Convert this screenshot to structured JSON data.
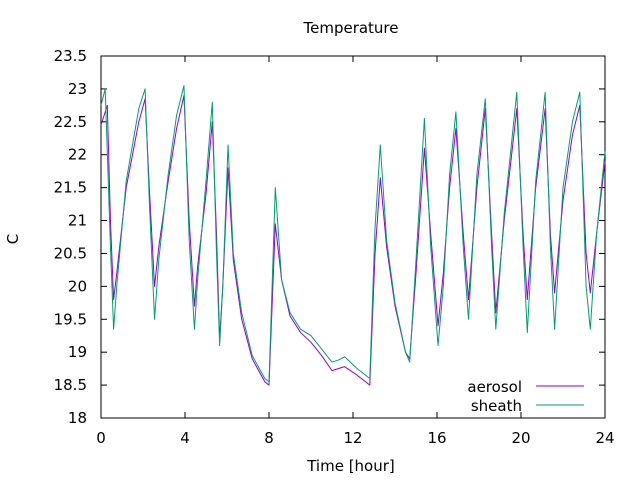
{
  "chart_data": {
    "type": "line",
    "title": "Temperature",
    "xlabel": "Time [hour]",
    "ylabel": "C",
    "xlim": [
      0,
      24
    ],
    "ylim": [
      18,
      23.5
    ],
    "x_ticks": [
      0,
      4,
      8,
      12,
      16,
      20,
      24
    ],
    "x_tick_labels": [
      "0",
      "4",
      "8",
      "12",
      "16",
      "20",
      "24"
    ],
    "y_ticks": [
      18,
      18.5,
      19,
      19.5,
      20,
      20.5,
      21,
      21.5,
      22,
      22.5,
      23,
      23.5
    ],
    "y_tick_labels": [
      "18",
      "18.5",
      "19",
      "19.5",
      "20",
      "20.5",
      "21",
      "21.5",
      "22",
      "22.5",
      "23",
      "23.5"
    ],
    "grid": false,
    "legend_position": "bottom-right",
    "series": [
      {
        "name": "aerosol",
        "color": "#9400d3",
        "points": [
          [
            0.0,
            22.45
          ],
          [
            0.3,
            22.75
          ],
          [
            0.45,
            21.0
          ],
          [
            0.6,
            19.8
          ],
          [
            0.75,
            20.2
          ],
          [
            1.2,
            21.5
          ],
          [
            1.8,
            22.5
          ],
          [
            2.1,
            22.85
          ],
          [
            2.3,
            21.5
          ],
          [
            2.55,
            20.0
          ],
          [
            2.75,
            20.6
          ],
          [
            3.2,
            21.6
          ],
          [
            3.6,
            22.4
          ],
          [
            3.95,
            22.9
          ],
          [
            4.2,
            21.0
          ],
          [
            4.45,
            19.7
          ],
          [
            4.6,
            20.3
          ],
          [
            5.0,
            21.4
          ],
          [
            5.3,
            22.5
          ],
          [
            5.5,
            20.8
          ],
          [
            5.65,
            19.2
          ],
          [
            5.8,
            20.0
          ],
          [
            6.05,
            21.8
          ],
          [
            6.3,
            20.4
          ],
          [
            6.7,
            19.5
          ],
          [
            7.2,
            18.9
          ],
          [
            7.8,
            18.55
          ],
          [
            8.0,
            18.5
          ],
          [
            8.3,
            20.95
          ],
          [
            8.6,
            20.1
          ],
          [
            9.0,
            19.55
          ],
          [
            9.5,
            19.3
          ],
          [
            10.0,
            19.15
          ],
          [
            10.5,
            18.95
          ],
          [
            11.0,
            18.72
          ],
          [
            11.3,
            18.75
          ],
          [
            11.6,
            18.78
          ],
          [
            12.2,
            18.65
          ],
          [
            12.8,
            18.5
          ],
          [
            13.05,
            20.5
          ],
          [
            13.3,
            21.65
          ],
          [
            13.6,
            20.6
          ],
          [
            14.0,
            19.7
          ],
          [
            14.5,
            19.0
          ],
          [
            14.7,
            18.9
          ],
          [
            15.0,
            20.2
          ],
          [
            15.4,
            22.1
          ],
          [
            15.7,
            20.8
          ],
          [
            16.05,
            19.4
          ],
          [
            16.3,
            20.2
          ],
          [
            16.6,
            21.5
          ],
          [
            16.9,
            22.4
          ],
          [
            17.25,
            20.8
          ],
          [
            17.5,
            19.8
          ],
          [
            17.9,
            21.5
          ],
          [
            18.3,
            22.7
          ],
          [
            18.6,
            20.8
          ],
          [
            18.8,
            19.6
          ],
          [
            19.2,
            21.0
          ],
          [
            19.8,
            22.7
          ],
          [
            20.1,
            20.8
          ],
          [
            20.3,
            19.8
          ],
          [
            20.7,
            21.5
          ],
          [
            21.15,
            22.7
          ],
          [
            21.4,
            20.8
          ],
          [
            21.6,
            19.9
          ],
          [
            22.0,
            21.3
          ],
          [
            22.45,
            22.3
          ],
          [
            22.8,
            22.75
          ],
          [
            23.1,
            20.5
          ],
          [
            23.3,
            19.9
          ],
          [
            23.6,
            20.8
          ],
          [
            24.0,
            21.9
          ]
        ]
      },
      {
        "name": "sheath",
        "color": "#009e73",
        "points": [
          [
            0.0,
            22.75
          ],
          [
            0.2,
            23.0
          ],
          [
            0.45,
            20.6
          ],
          [
            0.6,
            19.35
          ],
          [
            0.75,
            20.0
          ],
          [
            1.2,
            21.6
          ],
          [
            1.8,
            22.7
          ],
          [
            2.1,
            23.0
          ],
          [
            2.3,
            21.3
          ],
          [
            2.55,
            19.5
          ],
          [
            2.75,
            20.4
          ],
          [
            3.2,
            21.7
          ],
          [
            3.6,
            22.6
          ],
          [
            3.95,
            23.05
          ],
          [
            4.2,
            20.7
          ],
          [
            4.45,
            19.35
          ],
          [
            4.6,
            20.1
          ],
          [
            5.0,
            21.6
          ],
          [
            5.3,
            22.8
          ],
          [
            5.5,
            20.5
          ],
          [
            5.65,
            19.1
          ],
          [
            5.8,
            20.0
          ],
          [
            6.05,
            22.15
          ],
          [
            6.3,
            20.5
          ],
          [
            6.7,
            19.6
          ],
          [
            7.2,
            18.95
          ],
          [
            7.8,
            18.6
          ],
          [
            8.0,
            18.55
          ],
          [
            8.3,
            21.5
          ],
          [
            8.6,
            20.1
          ],
          [
            9.0,
            19.6
          ],
          [
            9.5,
            19.35
          ],
          [
            10.0,
            19.25
          ],
          [
            10.5,
            19.05
          ],
          [
            11.0,
            18.85
          ],
          [
            11.3,
            18.88
          ],
          [
            11.6,
            18.93
          ],
          [
            12.2,
            18.75
          ],
          [
            12.8,
            18.6
          ],
          [
            13.05,
            20.9
          ],
          [
            13.3,
            22.15
          ],
          [
            13.6,
            20.7
          ],
          [
            14.0,
            19.75
          ],
          [
            14.5,
            19.0
          ],
          [
            14.7,
            18.85
          ],
          [
            15.0,
            20.4
          ],
          [
            15.4,
            22.55
          ],
          [
            15.7,
            20.6
          ],
          [
            16.05,
            19.1
          ],
          [
            16.3,
            20.0
          ],
          [
            16.6,
            21.7
          ],
          [
            16.9,
            22.65
          ],
          [
            17.25,
            20.6
          ],
          [
            17.5,
            19.5
          ],
          [
            17.9,
            21.7
          ],
          [
            18.3,
            22.85
          ],
          [
            18.6,
            20.6
          ],
          [
            18.8,
            19.35
          ],
          [
            19.2,
            21.1
          ],
          [
            19.8,
            22.95
          ],
          [
            20.1,
            20.6
          ],
          [
            20.3,
            19.3
          ],
          [
            20.7,
            21.6
          ],
          [
            21.15,
            22.95
          ],
          [
            21.4,
            20.6
          ],
          [
            21.6,
            19.35
          ],
          [
            22.0,
            21.5
          ],
          [
            22.45,
            22.5
          ],
          [
            22.8,
            22.95
          ],
          [
            23.1,
            20.0
          ],
          [
            23.3,
            19.35
          ],
          [
            23.6,
            20.8
          ],
          [
            24.0,
            22.05
          ]
        ]
      }
    ]
  }
}
